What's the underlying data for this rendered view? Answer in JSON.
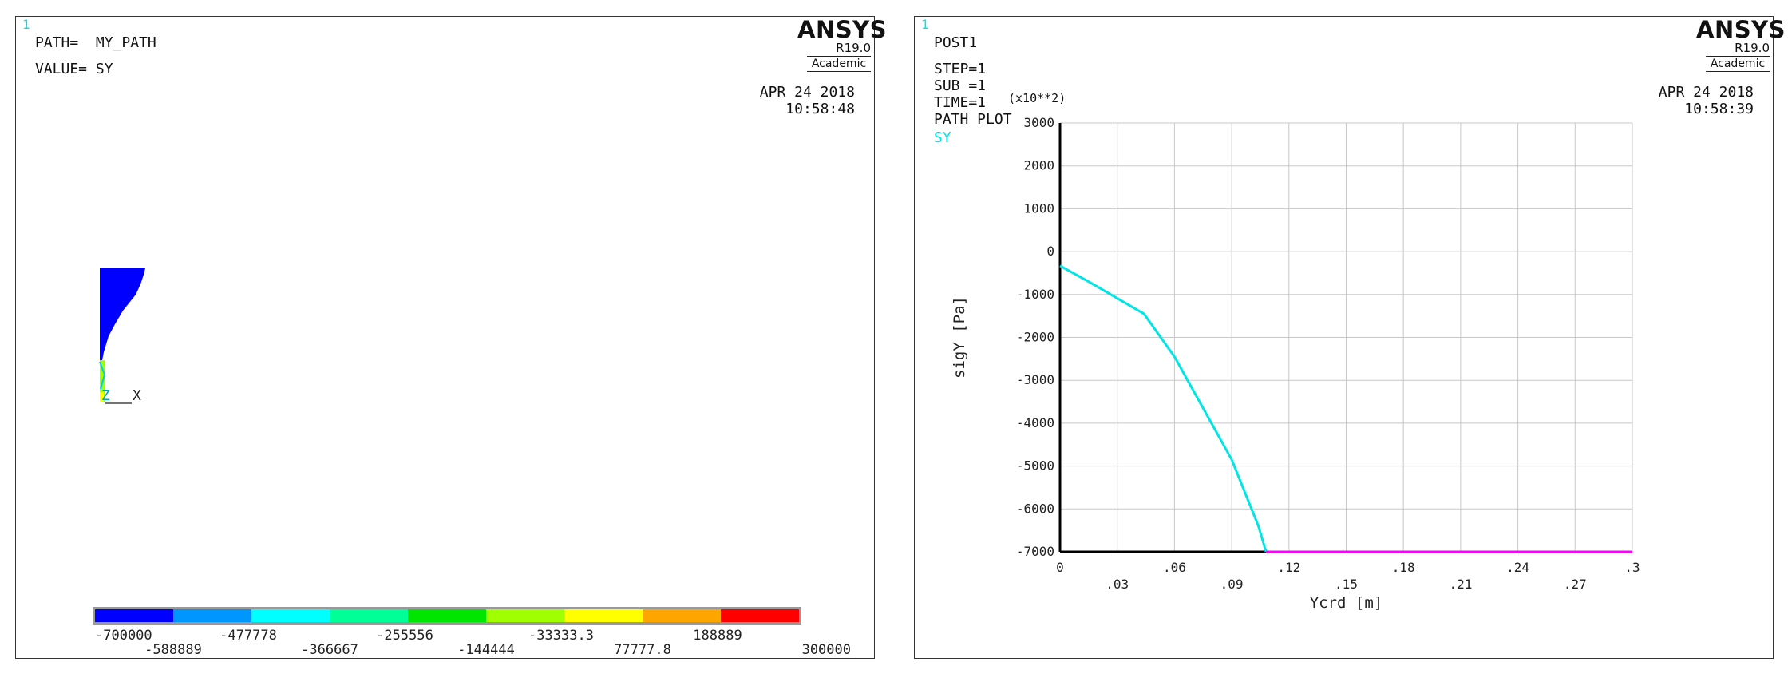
{
  "left": {
    "corner": "1",
    "path_line": "PATH=  MY_PATH",
    "value_line": "VALUE= SY",
    "logo": {
      "name": "ANSYS",
      "version": "R19.0",
      "edition": "Academic"
    },
    "date": "APR 24 2018",
    "time": "10:58:48",
    "triad": {
      "z": "Z",
      "x": "X"
    },
    "contour": {
      "colors": [
        "#0000ff",
        "#0096ff",
        "#00ffff",
        "#00ff96",
        "#00e600",
        "#a0ff00",
        "#ffff00",
        "#ffa500",
        "#ff0000"
      ],
      "labels_top": [
        "-700000",
        "-477778",
        "-255556",
        "-33333.3",
        "188889"
      ],
      "labels_bottom": [
        "-588889",
        "-366667",
        "-144444",
        "77777.8",
        "300000"
      ]
    }
  },
  "right": {
    "corner": "1",
    "info": [
      "POST1",
      "STEP=1",
      "SUB =1",
      "TIME=1",
      "PATH PLOT"
    ],
    "series_label": "SY",
    "multiplier": "(x10**2)",
    "logo": {
      "name": "ANSYS",
      "version": "R19.0",
      "edition": "Academic"
    },
    "date": "APR 24 2018",
    "time": "10:58:39"
  },
  "chart_data": {
    "type": "line",
    "xlabel": "Ycrd [m]",
    "ylabel": "sigY [Pa]",
    "xlim": [
      0,
      0.3
    ],
    "ylim": [
      -7000,
      3000
    ],
    "y_multiplier": "(x10**2)",
    "xticks": [
      "0",
      ".03",
      ".06",
      ".09",
      ".12",
      ".15",
      ".18",
      ".21",
      ".24",
      ".27",
      ".3"
    ],
    "yticks": [
      "3000",
      "2000",
      "1000",
      "0",
      "-1000",
      "-2000",
      "-3000",
      "-4000",
      "-5000",
      "-6000",
      "-7000"
    ],
    "grid": true,
    "series": [
      {
        "name": "SY",
        "color": "#00e5e5",
        "x": [
          0,
          0.015,
          0.044,
          0.06,
          0.09,
          0.104,
          0.108
        ],
        "y": [
          -330,
          -700,
          -1450,
          -2450,
          -4850,
          -6400,
          -7000
        ]
      },
      {
        "color": "#ff00ff",
        "x": [
          0.108,
          0.3
        ],
        "y": [
          -7000,
          -7000
        ]
      }
    ]
  }
}
